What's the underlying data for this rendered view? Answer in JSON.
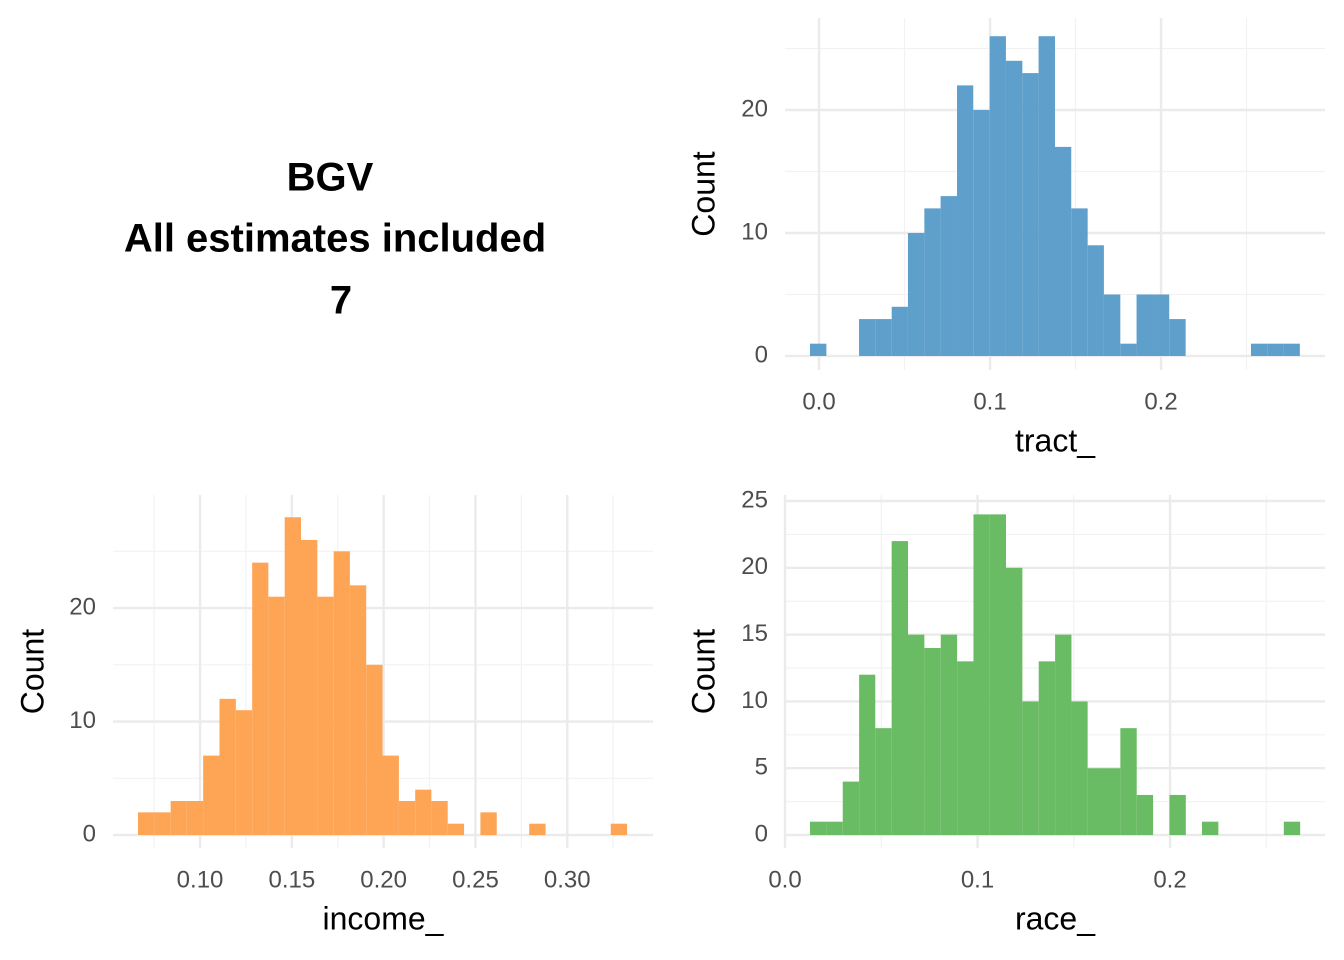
{
  "header": {
    "lines": [
      "BGV",
      "All estimates included",
      "7"
    ]
  },
  "chart_data": [
    {
      "type": "histogram",
      "x_label": "tract_",
      "y_label": "Count",
      "color": "#5f9fcb",
      "grid": true,
      "bins": [
        -0.0053,
        0.0043,
        0.0138,
        0.0234,
        0.0329,
        0.0425,
        0.052,
        0.0616,
        0.0711,
        0.0807,
        0.0902,
        0.0998,
        0.1093,
        0.1189,
        0.1284,
        0.138,
        0.1475,
        0.1571,
        0.1666,
        0.1762,
        0.1857,
        0.1953,
        0.2048,
        0.2144,
        0.2239,
        0.2335,
        0.243,
        0.2526,
        0.2621,
        0.2717,
        0.2812
      ],
      "values": [
        1,
        0,
        0,
        3,
        3,
        4,
        10,
        12,
        13,
        22,
        20,
        26,
        24,
        23,
        26,
        17,
        12,
        9,
        5,
        1,
        5,
        5,
        3,
        0,
        0,
        0,
        0,
        1,
        1,
        1
      ],
      "xlim": [
        -0.0199,
        0.2959
      ],
      "ylim": [
        -1.14,
        27.48
      ],
      "xticks": [
        {
          "value": 0,
          "label": "0.0"
        },
        0.1,
        0.2
      ],
      "yticks": [
        0,
        10,
        20
      ],
      "x_minor_ticks": [
        0.05,
        0.15,
        0.25
      ],
      "y_minor_ticks": [
        5,
        15,
        25
      ]
    },
    {
      "type": "histogram",
      "x_label": "income_",
      "y_label": "Count",
      "color": "#fda455",
      "grid": true,
      "bins": [
        0.0662,
        0.0751,
        0.084,
        0.0928,
        0.1017,
        0.1106,
        0.1195,
        0.1284,
        0.1372,
        0.1461,
        0.155,
        0.1639,
        0.1728,
        0.1816,
        0.1905,
        0.1994,
        0.2083,
        0.2172,
        0.226,
        0.2349,
        0.2438,
        0.2527,
        0.2616,
        0.2704,
        0.2793,
        0.2882,
        0.2971,
        0.306,
        0.3148,
        0.3237,
        0.3326
      ],
      "values": [
        2,
        2,
        3,
        3,
        7,
        12,
        11,
        24,
        21,
        28,
        26,
        21,
        25,
        22,
        15,
        7,
        3,
        4,
        3,
        1,
        0,
        2,
        0,
        0,
        1,
        0,
        0,
        0,
        0,
        1
      ],
      "xlim": [
        0.0526,
        0.3467
      ],
      "ylim": [
        -1.14,
        29.96
      ],
      "xticks": [
        {
          "value": 0.1,
          "label": "0.10"
        },
        0.15,
        {
          "value": 0.2,
          "label": "0.20"
        },
        0.25,
        {
          "value": 0.3,
          "label": "0.30"
        }
      ],
      "yticks": [
        0,
        10,
        20
      ],
      "x_minor_ticks": [
        0.075,
        0.125,
        0.175,
        0.225,
        0.275,
        0.325
      ],
      "y_minor_ticks": [
        5,
        15,
        25
      ]
    },
    {
      "type": "histogram",
      "x_label": "race_",
      "y_label": "Count",
      "color": "#69bc64",
      "grid": true,
      "bins": [
        0.013,
        0.0215,
        0.03,
        0.0385,
        0.0469,
        0.0554,
        0.0639,
        0.0724,
        0.0809,
        0.0894,
        0.0979,
        0.1063,
        0.1148,
        0.1233,
        0.1318,
        0.1403,
        0.1488,
        0.1572,
        0.1657,
        0.1742,
        0.1827,
        0.1912,
        0.1997,
        0.2082,
        0.2166,
        0.2251,
        0.2336,
        0.2421,
        0.2506,
        0.2591,
        0.2676
      ],
      "values": [
        1,
        1,
        4,
        12,
        8,
        22,
        15,
        14,
        15,
        13,
        24,
        24,
        20,
        10,
        13,
        15,
        10,
        5,
        5,
        8,
        3,
        0,
        3,
        0,
        1,
        0,
        0,
        0,
        0,
        1
      ],
      "xlim": [
        0,
        0.2805
      ],
      "ylim": [
        -0.97,
        25.45
      ],
      "xticks": [
        {
          "value": 0,
          "label": "0.0"
        },
        0.1,
        0.2
      ],
      "yticks": [
        0,
        5,
        10,
        15,
        20,
        25
      ],
      "x_minor_ticks": [
        0.05,
        0.15,
        0.25
      ],
      "y_minor_ticks": [
        2.5,
        7.5,
        12.5,
        17.5,
        22.5
      ]
    }
  ]
}
